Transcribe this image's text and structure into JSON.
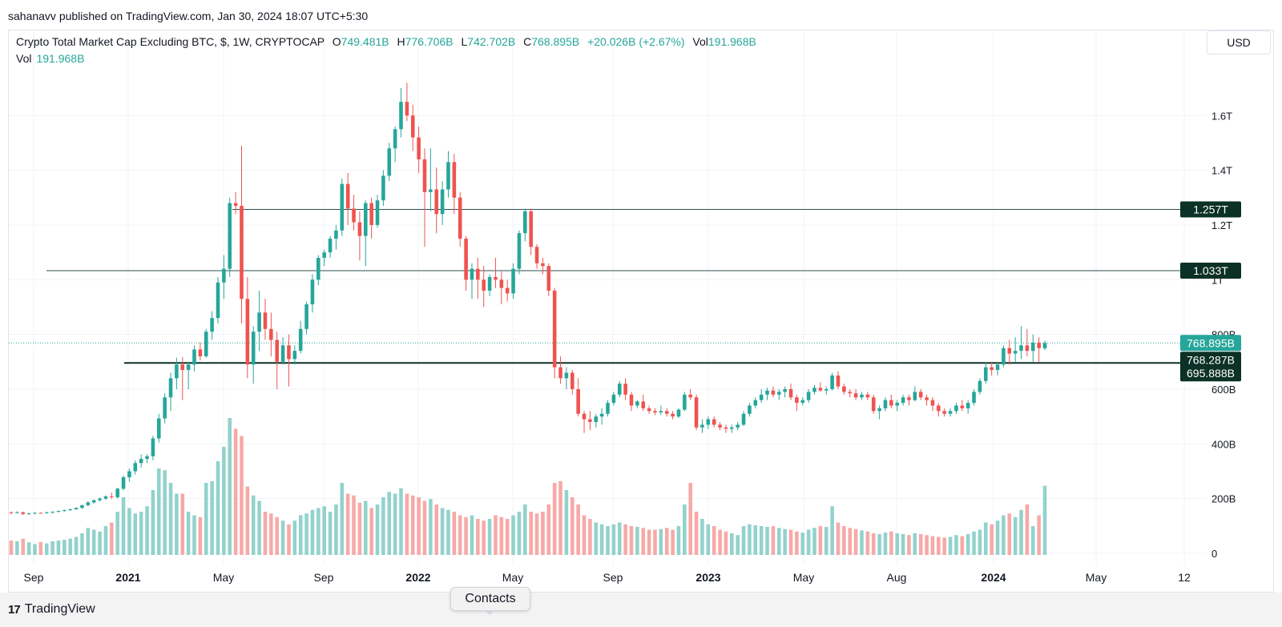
{
  "publisher_line": "sahanavv published on TradingView.com, Jan 30, 2024 18:07 UTC+5:30",
  "legend": {
    "symbol": "Crypto Total Market Cap Excluding BTC, $, 1W, CRYPTOCAP",
    "o_label": "O",
    "o_value": "749.481B",
    "h_label": "H",
    "h_value": "776.706B",
    "l_label": "L",
    "l_value": "742.702B",
    "c_label": "C",
    "c_value": "768.895B",
    "change": "+20.026B (+2.67%)",
    "vol_label": "Vol",
    "vol_value": "191.968B"
  },
  "vol_legend": {
    "label": "Vol",
    "value": "191.968B"
  },
  "currency_button": "USD",
  "brand": {
    "logo": "17",
    "name": "TradingView"
  },
  "contacts_label": "Contacts",
  "colors": {
    "up": "#26a69a",
    "down": "#ef5350",
    "vol_up": "#92d2cc",
    "vol_down": "#f7a9a7",
    "label_bg": "#0c3126"
  },
  "chart_data": {
    "type": "candlestick",
    "interval": "1W",
    "y_axis_ticks": [
      "0",
      "200B",
      "400B",
      "600B",
      "800B",
      "1T",
      "1.2T",
      "1.4T",
      "1.6T"
    ],
    "x_axis_ticks": [
      "Sep",
      "2021",
      "May",
      "Sep",
      "2022",
      "May",
      "Sep",
      "2023",
      "May",
      "Aug",
      "2024",
      "May",
      "12"
    ],
    "price_labels": [
      {
        "text": "1.257T",
        "value": 1257,
        "kind": "line"
      },
      {
        "text": "1.033T",
        "value": 1033,
        "kind": "line"
      },
      {
        "text": "768.895B",
        "value": 768.895,
        "kind": "last"
      },
      {
        "text": "768.287B",
        "value": 768.287,
        "kind": "line"
      },
      {
        "text": "695.888B",
        "value": 695.888,
        "kind": "line"
      }
    ],
    "horizontal_lines": [
      1257,
      1033,
      695.888
    ],
    "candles": [
      [
        150,
        153,
        143,
        148,
        40
      ],
      [
        148,
        154,
        146,
        150,
        38
      ],
      [
        150,
        152,
        140,
        144,
        45
      ],
      [
        144,
        148,
        141,
        146,
        35
      ],
      [
        146,
        150,
        143,
        148,
        30
      ],
      [
        148,
        150,
        145,
        147,
        36
      ],
      [
        147,
        152,
        145,
        150,
        32
      ],
      [
        150,
        153,
        146,
        152,
        38
      ],
      [
        152,
        156,
        149,
        155,
        40
      ],
      [
        155,
        160,
        152,
        158,
        42
      ],
      [
        158,
        163,
        155,
        161,
        45
      ],
      [
        161,
        168,
        159,
        166,
        50
      ],
      [
        166,
        178,
        163,
        176,
        60
      ],
      [
        176,
        190,
        172,
        186,
        75
      ],
      [
        186,
        197,
        182,
        194,
        70
      ],
      [
        194,
        205,
        190,
        200,
        65
      ],
      [
        200,
        212,
        195,
        208,
        80
      ],
      [
        208,
        222,
        199,
        205,
        90
      ],
      [
        205,
        240,
        200,
        236,
        120
      ],
      [
        236,
        285,
        230,
        278,
        160
      ],
      [
        278,
        310,
        262,
        300,
        130
      ],
      [
        300,
        340,
        288,
        330,
        115
      ],
      [
        330,
        362,
        314,
        345,
        120
      ],
      [
        345,
        362,
        330,
        355,
        135
      ],
      [
        355,
        430,
        340,
        420,
        180
      ],
      [
        420,
        510,
        405,
        493,
        240
      ],
      [
        493,
        585,
        475,
        570,
        235
      ],
      [
        570,
        660,
        520,
        640,
        200
      ],
      [
        640,
        715,
        600,
        690,
        170
      ],
      [
        690,
        718,
        560,
        670,
        170
      ],
      [
        670,
        700,
        600,
        690,
        120
      ],
      [
        690,
        760,
        665,
        745,
        110
      ],
      [
        745,
        770,
        705,
        720,
        105
      ],
      [
        720,
        820,
        715,
        810,
        200
      ],
      [
        810,
        885,
        780,
        860,
        205
      ],
      [
        860,
        1010,
        840,
        990,
        260
      ],
      [
        990,
        1090,
        930,
        1040,
        300
      ],
      [
        1040,
        1300,
        1010,
        1280,
        380
      ],
      [
        1280,
        1320,
        1240,
        1270,
        350
      ],
      [
        1270,
        1490,
        840,
        930,
        330
      ],
      [
        930,
        1010,
        640,
        690,
        190
      ],
      [
        690,
        830,
        620,
        810,
        165
      ],
      [
        810,
        960,
        740,
        880,
        150
      ],
      [
        880,
        930,
        780,
        820,
        120
      ],
      [
        820,
        880,
        720,
        780,
        115
      ],
      [
        780,
        810,
        600,
        700,
        105
      ],
      [
        700,
        790,
        690,
        760,
        95
      ],
      [
        760,
        800,
        610,
        710,
        85
      ],
      [
        710,
        760,
        690,
        740,
        95
      ],
      [
        740,
        850,
        730,
        820,
        110
      ],
      [
        820,
        920,
        800,
        910,
        115
      ],
      [
        910,
        1020,
        880,
        1000,
        125
      ],
      [
        1000,
        1090,
        980,
        1080,
        130
      ],
      [
        1080,
        1110,
        1050,
        1100,
        135
      ],
      [
        1100,
        1160,
        1080,
        1150,
        120
      ],
      [
        1150,
        1200,
        1110,
        1180,
        140
      ],
      [
        1180,
        1370,
        1160,
        1350,
        200
      ],
      [
        1350,
        1390,
        1200,
        1260,
        170
      ],
      [
        1260,
        1310,
        1180,
        1210,
        165
      ],
      [
        1210,
        1250,
        1070,
        1160,
        145
      ],
      [
        1160,
        1290,
        1050,
        1280,
        150
      ],
      [
        1280,
        1300,
        1150,
        1200,
        130
      ],
      [
        1200,
        1310,
        1190,
        1290,
        140
      ],
      [
        1290,
        1400,
        1270,
        1380,
        160
      ],
      [
        1380,
        1500,
        1360,
        1480,
        175
      ],
      [
        1480,
        1560,
        1430,
        1550,
        170
      ],
      [
        1550,
        1700,
        1520,
        1650,
        185
      ],
      [
        1650,
        1720,
        1580,
        1600,
        170
      ],
      [
        1600,
        1640,
        1470,
        1520,
        165
      ],
      [
        1520,
        1560,
        1390,
        1440,
        160
      ],
      [
        1440,
        1480,
        1120,
        1320,
        150
      ],
      [
        1320,
        1480,
        1250,
        1330,
        155
      ],
      [
        1330,
        1410,
        1170,
        1240,
        140
      ],
      [
        1240,
        1360,
        1200,
        1330,
        130
      ],
      [
        1330,
        1470,
        1300,
        1430,
        125
      ],
      [
        1430,
        1460,
        1240,
        1300,
        120
      ],
      [
        1300,
        1320,
        1120,
        1150,
        110
      ],
      [
        1150,
        1160,
        960,
        1000,
        105
      ],
      [
        1000,
        1060,
        930,
        1040,
        110
      ],
      [
        1040,
        1080,
        930,
        1000,
        100
      ],
      [
        1000,
        1050,
        900,
        960,
        95
      ],
      [
        960,
        1020,
        940,
        1010,
        100
      ],
      [
        1010,
        1080,
        970,
        1000,
        110
      ],
      [
        1000,
        1030,
        910,
        970,
        105
      ],
      [
        970,
        1000,
        920,
        950,
        100
      ],
      [
        950,
        1060,
        930,
        1040,
        110
      ],
      [
        1040,
        1180,
        1020,
        1170,
        120
      ],
      [
        1170,
        1260,
        1140,
        1250,
        140
      ],
      [
        1250,
        1260,
        1090,
        1120,
        120
      ],
      [
        1120,
        1130,
        1040,
        1060,
        115
      ],
      [
        1060,
        1080,
        1020,
        1050,
        120
      ],
      [
        1050,
        1060,
        940,
        960,
        140
      ],
      [
        960,
        970,
        640,
        680,
        200
      ],
      [
        680,
        720,
        620,
        640,
        205
      ],
      [
        640,
        680,
        600,
        660,
        180
      ],
      [
        660,
        670,
        580,
        600,
        160
      ],
      [
        600,
        640,
        500,
        510,
        140
      ],
      [
        510,
        520,
        440,
        490,
        110
      ],
      [
        490,
        520,
        450,
        480,
        100
      ],
      [
        480,
        510,
        460,
        500,
        90
      ],
      [
        500,
        530,
        470,
        510,
        85
      ],
      [
        510,
        560,
        500,
        550,
        80
      ],
      [
        550,
        590,
        540,
        580,
        85
      ],
      [
        580,
        630,
        570,
        620,
        90
      ],
      [
        620,
        640,
        560,
        580,
        85
      ],
      [
        580,
        590,
        520,
        540,
        80
      ],
      [
        540,
        560,
        530,
        555,
        78
      ],
      [
        555,
        580,
        520,
        530,
        75
      ],
      [
        530,
        540,
        510,
        520,
        70
      ],
      [
        520,
        530,
        505,
        515,
        70
      ],
      [
        515,
        540,
        505,
        520,
        72
      ],
      [
        520,
        530,
        500,
        510,
        75
      ],
      [
        510,
        520,
        490,
        500,
        70
      ],
      [
        500,
        530,
        495,
        525,
        80
      ],
      [
        525,
        590,
        520,
        580,
        140
      ],
      [
        580,
        600,
        560,
        570,
        200
      ],
      [
        570,
        580,
        450,
        460,
        120
      ],
      [
        460,
        490,
        440,
        470,
        100
      ],
      [
        470,
        500,
        455,
        490,
        85
      ],
      [
        490,
        500,
        460,
        470,
        80
      ],
      [
        470,
        480,
        450,
        460,
        70
      ],
      [
        460,
        470,
        440,
        455,
        65
      ],
      [
        455,
        470,
        440,
        460,
        60
      ],
      [
        460,
        480,
        450,
        470,
        55
      ],
      [
        470,
        520,
        465,
        510,
        80
      ],
      [
        510,
        550,
        500,
        540,
        85
      ],
      [
        540,
        570,
        530,
        560,
        82
      ],
      [
        560,
        600,
        550,
        580,
        80
      ],
      [
        580,
        605,
        560,
        595,
        78
      ],
      [
        595,
        610,
        570,
        580,
        80
      ],
      [
        580,
        600,
        560,
        590,
        75
      ],
      [
        590,
        610,
        570,
        600,
        72
      ],
      [
        600,
        620,
        560,
        570,
        70
      ],
      [
        570,
        580,
        520,
        550,
        65
      ],
      [
        550,
        570,
        540,
        560,
        62
      ],
      [
        560,
        600,
        550,
        590,
        70
      ],
      [
        590,
        615,
        580,
        605,
        75
      ],
      [
        605,
        625,
        590,
        595,
        80
      ],
      [
        595,
        610,
        580,
        600,
        78
      ],
      [
        600,
        660,
        595,
        650,
        135
      ],
      [
        650,
        665,
        600,
        610,
        90
      ],
      [
        610,
        620,
        580,
        590,
        80
      ],
      [
        590,
        600,
        570,
        585,
        75
      ],
      [
        585,
        600,
        560,
        570,
        72
      ],
      [
        570,
        590,
        560,
        580,
        68
      ],
      [
        580,
        590,
        560,
        570,
        65
      ],
      [
        570,
        580,
        510,
        520,
        60
      ],
      [
        520,
        540,
        490,
        530,
        58
      ],
      [
        530,
        570,
        520,
        560,
        62
      ],
      [
        560,
        580,
        530,
        540,
        65
      ],
      [
        540,
        560,
        520,
        550,
        60
      ],
      [
        550,
        580,
        540,
        570,
        58
      ],
      [
        570,
        580,
        540,
        560,
        55
      ],
      [
        560,
        610,
        555,
        590,
        60
      ],
      [
        590,
        600,
        560,
        570,
        58
      ],
      [
        570,
        580,
        540,
        560,
        55
      ],
      [
        560,
        570,
        520,
        540,
        52
      ],
      [
        540,
        550,
        500,
        520,
        50
      ],
      [
        520,
        530,
        500,
        510,
        48
      ],
      [
        510,
        530,
        500,
        520,
        50
      ],
      [
        520,
        550,
        510,
        540,
        55
      ],
      [
        540,
        560,
        520,
        530,
        52
      ],
      [
        530,
        560,
        510,
        550,
        58
      ],
      [
        550,
        600,
        540,
        590,
        65
      ],
      [
        590,
        640,
        580,
        630,
        70
      ],
      [
        630,
        700,
        620,
        680,
        90
      ],
      [
        680,
        700,
        650,
        670,
        85
      ],
      [
        670,
        700,
        650,
        690,
        95
      ],
      [
        690,
        760,
        680,
        750,
        110
      ],
      [
        750,
        780,
        690,
        730,
        115
      ],
      [
        730,
        790,
        700,
        740,
        105
      ],
      [
        740,
        830,
        710,
        760,
        125
      ],
      [
        760,
        820,
        720,
        740,
        140
      ],
      [
        740,
        800,
        700,
        770,
        80
      ],
      [
        770,
        790,
        700,
        750,
        110
      ],
      [
        749.481,
        776.706,
        742.702,
        768.895,
        192
      ]
    ]
  }
}
